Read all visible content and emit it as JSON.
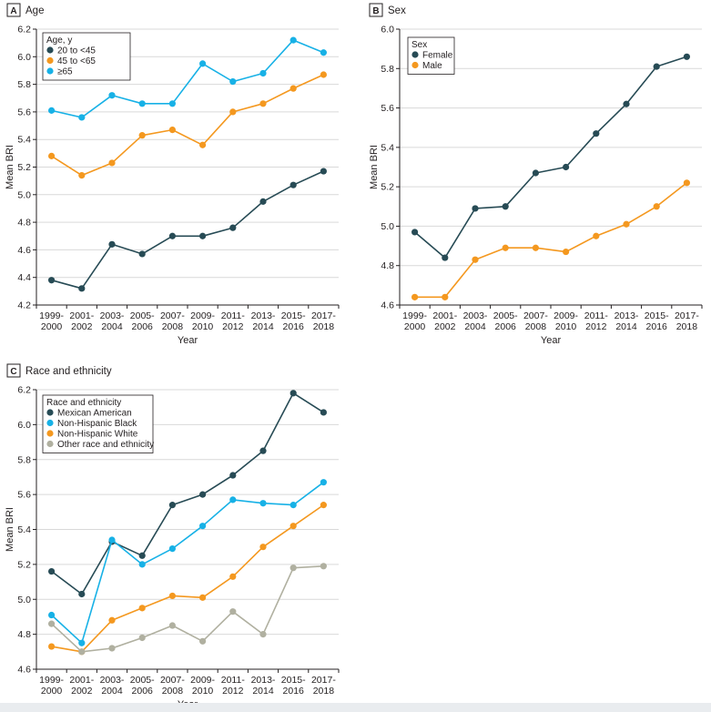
{
  "colors": {
    "dark": "#274b55",
    "orange": "#f4981f",
    "blue": "#17b1e6",
    "gray": "#b0b0a0",
    "grid": "#d9d9d9",
    "axis": "#231f20"
  },
  "chart_data": [
    {
      "type": "line",
      "panel_label": "A",
      "title": "Age",
      "xlabel": "Year",
      "ylabel": "Mean BRI",
      "ylim": [
        4.2,
        6.2
      ],
      "yticks": [
        "4.2",
        "4.4",
        "4.6",
        "4.8",
        "5.0",
        "5.2",
        "5.4",
        "5.6",
        "5.8",
        "6.0",
        "6.2"
      ],
      "grid": true,
      "legend_title": "Age, y",
      "legend_position": "top-left",
      "categories": [
        [
          "1999-",
          "2000"
        ],
        [
          "2001-",
          "2002"
        ],
        [
          "2003-",
          "2004"
        ],
        [
          "2005-",
          "2006"
        ],
        [
          "2007-",
          "2008"
        ],
        [
          "2009-",
          "2010"
        ],
        [
          "2011-",
          "2012"
        ],
        [
          "2013-",
          "2014"
        ],
        [
          "2015-",
          "2016"
        ],
        [
          "2017-",
          "2018"
        ]
      ],
      "series": [
        {
          "name": "20 to <45",
          "color": "#274b55",
          "values": [
            4.38,
            4.32,
            4.64,
            4.57,
            4.7,
            4.7,
            4.76,
            4.95,
            5.07,
            5.17
          ]
        },
        {
          "name": "45 to <65",
          "color": "#f4981f",
          "values": [
            5.28,
            5.14,
            5.23,
            5.43,
            5.47,
            5.36,
            5.6,
            5.66,
            5.77,
            5.87
          ]
        },
        {
          "name": "≥65",
          "color": "#17b1e6",
          "values": [
            5.61,
            5.56,
            5.72,
            5.66,
            5.66,
            5.95,
            5.82,
            5.88,
            6.12,
            6.03
          ]
        }
      ]
    },
    {
      "type": "line",
      "panel_label": "B",
      "title": "Sex",
      "xlabel": "Year",
      "ylabel": "Mean BRI",
      "ylim": [
        4.6,
        6.0
      ],
      "yticks": [
        "4.6",
        "4.8",
        "5.0",
        "5.2",
        "5.4",
        "5.6",
        "5.8",
        "6.0"
      ],
      "grid": true,
      "legend_title": "Sex",
      "legend_position": "top-left",
      "categories": [
        [
          "1999-",
          "2000"
        ],
        [
          "2001-",
          "2002"
        ],
        [
          "2003-",
          "2004"
        ],
        [
          "2005-",
          "2006"
        ],
        [
          "2007-",
          "2008"
        ],
        [
          "2009-",
          "2010"
        ],
        [
          "2011-",
          "2012"
        ],
        [
          "2013-",
          "2014"
        ],
        [
          "2015-",
          "2016"
        ],
        [
          "2017-",
          "2018"
        ]
      ],
      "series": [
        {
          "name": "Female",
          "color": "#274b55",
          "values": [
            4.97,
            4.84,
            5.09,
            5.1,
            5.27,
            5.3,
            5.47,
            5.62,
            5.81,
            5.86
          ]
        },
        {
          "name": "Male",
          "color": "#f4981f",
          "values": [
            4.64,
            4.64,
            4.83,
            4.89,
            4.89,
            4.87,
            4.95,
            5.01,
            5.1,
            5.22
          ]
        }
      ]
    },
    {
      "type": "line",
      "panel_label": "C",
      "title": "Race and ethnicity",
      "xlabel": "Year",
      "ylabel": "Mean BRI",
      "ylim": [
        4.6,
        6.2
      ],
      "yticks": [
        "4.6",
        "4.8",
        "5.0",
        "5.2",
        "5.4",
        "5.6",
        "5.8",
        "6.0",
        "6.2"
      ],
      "grid": true,
      "legend_title": "Race and ethnicity",
      "legend_position": "top-left",
      "categories": [
        [
          "1999-",
          "2000"
        ],
        [
          "2001-",
          "2002"
        ],
        [
          "2003-",
          "2004"
        ],
        [
          "2005-",
          "2006"
        ],
        [
          "2007-",
          "2008"
        ],
        [
          "2009-",
          "2010"
        ],
        [
          "2011-",
          "2012"
        ],
        [
          "2013-",
          "2014"
        ],
        [
          "2015-",
          "2016"
        ],
        [
          "2017-",
          "2018"
        ]
      ],
      "series": [
        {
          "name": "Mexican American",
          "color": "#274b55",
          "values": [
            5.16,
            5.03,
            5.33,
            5.25,
            5.54,
            5.6,
            5.71,
            5.85,
            6.18,
            6.07
          ]
        },
        {
          "name": "Non-Hispanic Black",
          "color": "#17b1e6",
          "values": [
            4.91,
            4.75,
            5.34,
            5.2,
            5.29,
            5.42,
            5.57,
            5.55,
            5.54,
            5.67
          ]
        },
        {
          "name": "Non-Hispanic White",
          "color": "#f4981f",
          "values": [
            4.73,
            4.7,
            4.88,
            4.95,
            5.02,
            5.01,
            5.13,
            5.3,
            5.42,
            5.54
          ]
        },
        {
          "name": "Other race and ethnicity",
          "color": "#b0b0a0",
          "values": [
            4.86,
            4.7,
            4.72,
            4.78,
            4.85,
            4.76,
            4.93,
            4.8,
            5.18,
            5.19
          ]
        }
      ]
    }
  ]
}
